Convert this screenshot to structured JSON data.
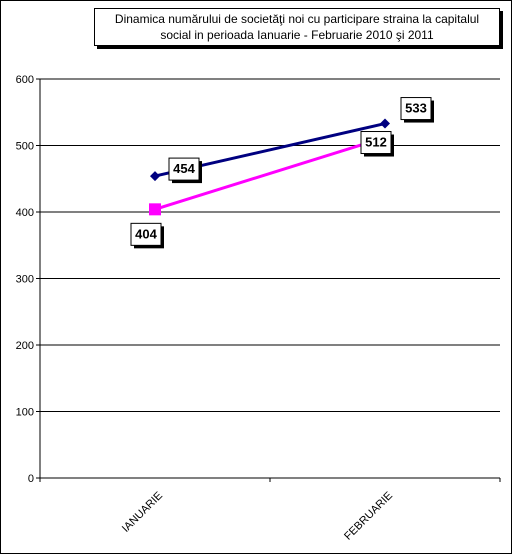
{
  "chart_data": {
    "type": "line",
    "title_lines": [
      "Dinamica numărului de societăţi noi cu participare straina la capitalul",
      "social in perioada Ianuarie - Februarie 2010 şi 2011"
    ],
    "categories": [
      "IANUARIE",
      "FEBRUARIE"
    ],
    "ylim": [
      0,
      600
    ],
    "yticks": [
      0,
      100,
      200,
      300,
      400,
      500,
      600
    ],
    "grid": true,
    "series": [
      {
        "values": [
          454,
          533
        ],
        "color": "#000080",
        "marker": "diamond"
      },
      {
        "values": [
          404,
          512
        ],
        "color": "#FF00FF",
        "marker": "square"
      }
    ],
    "data_labels": [
      [
        "454",
        "533"
      ],
      [
        "404",
        "512"
      ]
    ]
  }
}
